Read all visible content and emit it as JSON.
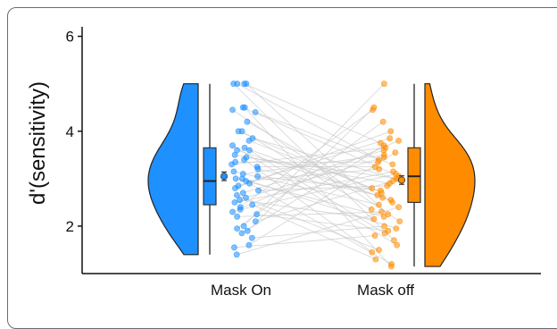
{
  "chart_data": {
    "type": "raincloud",
    "ylabel": "d'(sensitivity)",
    "xlabel": "",
    "ylim": [
      1,
      6.2
    ],
    "yticks": [
      "2",
      "4",
      "6"
    ],
    "grid": false,
    "categories": [
      "Mask On",
      "Mask off"
    ],
    "series": [
      {
        "category": "Mask On",
        "color": "#1E90FF",
        "box": {
          "min": 1.4,
          "q1": 2.45,
          "median": 2.95,
          "q3": 3.65,
          "max": 5.0
        },
        "mean": 3.05,
        "mean_error": 0.09,
        "points": [
          5.0,
          5.0,
          5.0,
          5.0,
          4.5,
          4.5,
          4.45,
          4.4,
          4.2,
          4.0,
          4.0,
          3.85,
          3.8,
          3.7,
          3.65,
          3.6,
          3.6,
          3.5,
          3.45,
          3.4,
          3.35,
          3.3,
          3.25,
          3.2,
          3.15,
          3.1,
          3.05,
          3.0,
          3.0,
          2.95,
          2.9,
          2.85,
          2.8,
          2.75,
          2.7,
          2.65,
          2.6,
          2.55,
          2.5,
          2.45,
          2.4,
          2.35,
          2.3,
          2.25,
          2.2,
          2.1,
          2.0,
          1.95,
          1.9,
          1.85,
          1.75,
          1.6,
          1.55,
          1.4
        ]
      },
      {
        "category": "Mask off",
        "color": "#FF8C00",
        "box": {
          "min": 1.15,
          "q1": 2.5,
          "median": 3.05,
          "q3": 3.65,
          "max": 5.0
        },
        "mean": 2.97,
        "mean_error": 0.09,
        "points": [
          5.0,
          4.5,
          4.45,
          4.2,
          4.0,
          3.85,
          3.8,
          3.75,
          3.7,
          3.65,
          3.6,
          3.55,
          3.5,
          3.45,
          3.4,
          3.35,
          3.3,
          3.25,
          3.2,
          3.15,
          3.1,
          3.05,
          3.0,
          3.0,
          2.95,
          2.9,
          2.85,
          2.8,
          2.75,
          2.7,
          2.65,
          2.6,
          2.55,
          2.5,
          2.45,
          2.4,
          2.35,
          2.3,
          2.25,
          2.2,
          2.15,
          2.1,
          2.0,
          1.95,
          1.9,
          1.85,
          1.8,
          1.7,
          1.6,
          1.5,
          1.45,
          1.3,
          1.2,
          1.15
        ]
      }
    ]
  }
}
